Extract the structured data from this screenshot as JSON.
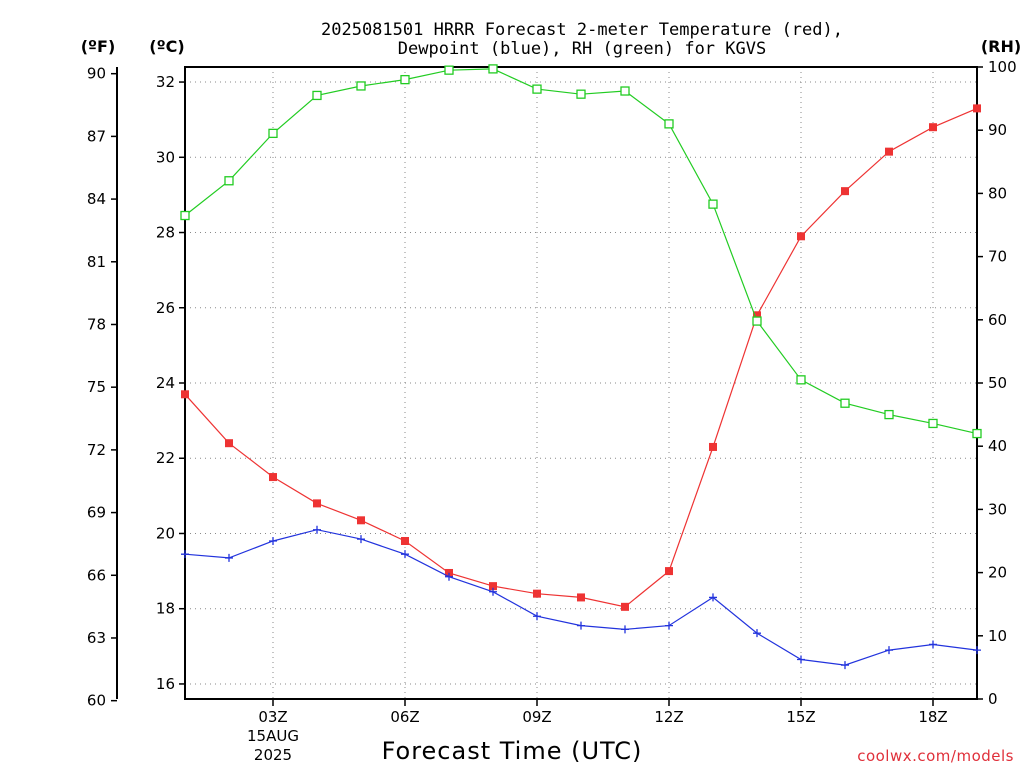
{
  "title": {
    "line1": "2025081501 HRRR Forecast 2-meter Temperature (red),",
    "line2": "Dewpoint (blue), RH (green) for KGVS"
  },
  "units": {
    "left_f": "(ºF)",
    "left_c": "(ºC)",
    "right_rh": "(RH)"
  },
  "credit": "coolwx.com/models",
  "chart_data": {
    "type": "line",
    "xlabel": "Forecast Time (UTC)",
    "x_hours": [
      1,
      2,
      3,
      4,
      5,
      6,
      7,
      8,
      9,
      10,
      11,
      12,
      13,
      14,
      15,
      16,
      17,
      18,
      19
    ],
    "xlim": [
      1,
      19
    ],
    "x_ticks": [
      {
        "hour": 3,
        "label": "03Z",
        "sub1": "15AUG",
        "sub2": "2025"
      },
      {
        "hour": 6,
        "label": "06Z"
      },
      {
        "hour": 9,
        "label": "09Z"
      },
      {
        "hour": 12,
        "label": "12Z"
      },
      {
        "hour": 15,
        "label": "15Z"
      },
      {
        "hour": 18,
        "label": "18Z"
      }
    ],
    "yc_lim": [
      15.6,
      32.4
    ],
    "yc_ticks": [
      16,
      18,
      20,
      22,
      24,
      26,
      28,
      30,
      32
    ],
    "yf_ticks": [
      60,
      63,
      66,
      69,
      72,
      75,
      78,
      81,
      84,
      87,
      90
    ],
    "rh_lim": [
      0,
      100
    ],
    "rh_ticks": [
      0,
      10,
      20,
      30,
      40,
      50,
      60,
      70,
      80,
      90,
      100
    ],
    "grid": true,
    "series": [
      {
        "name": "Temperature",
        "color": "#ee3333",
        "marker": "square-filled",
        "axis": "celsius",
        "values": [
          23.7,
          22.4,
          21.5,
          20.8,
          20.35,
          19.8,
          18.95,
          18.6,
          18.4,
          18.3,
          18.05,
          19.0,
          22.3,
          25.8,
          27.9,
          29.1,
          30.15,
          30.8,
          31.3
        ]
      },
      {
        "name": "Dewpoint",
        "color": "#2233dd",
        "marker": "plus",
        "axis": "celsius",
        "values": [
          19.45,
          19.35,
          19.8,
          20.1,
          19.85,
          19.45,
          18.85,
          18.45,
          17.8,
          17.55,
          17.45,
          17.55,
          18.3,
          17.35,
          16.65,
          16.5,
          16.9,
          17.05,
          16.9
        ]
      },
      {
        "name": "RH",
        "color": "#22cc22",
        "marker": "square-open",
        "axis": "rh",
        "values": [
          76.5,
          82.0,
          89.5,
          95.5,
          97.0,
          98.0,
          99.5,
          99.7,
          96.5,
          95.7,
          96.2,
          91.0,
          78.3,
          59.8,
          50.5,
          46.8,
          45.0,
          43.6,
          42.0
        ]
      }
    ]
  }
}
